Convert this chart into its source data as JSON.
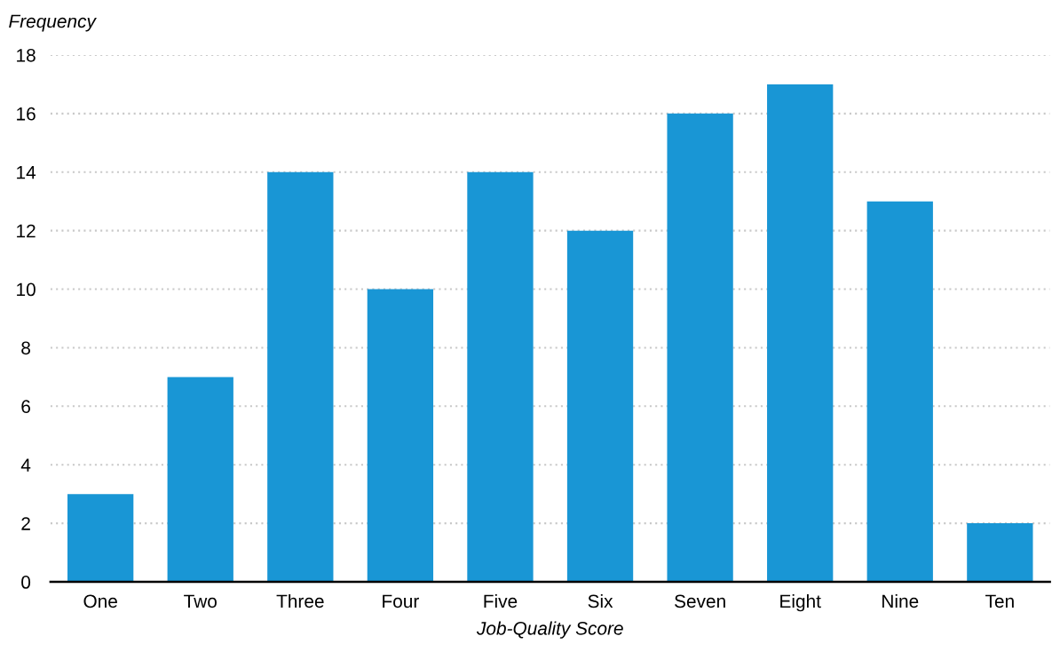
{
  "chart_data": {
    "type": "bar",
    "xlabel": "Job-Quality Score",
    "ylabel": "Frequency",
    "categories": [
      "One",
      "Two",
      "Three",
      "Four",
      "Five",
      "Six",
      "Seven",
      "Eight",
      "Nine",
      "Ten"
    ],
    "values": [
      3,
      7,
      14,
      10,
      14,
      12,
      16,
      17,
      13,
      2
    ],
    "color": "#1996d5",
    "ylim": [
      0,
      18
    ],
    "yticks": [
      0,
      2,
      4,
      6,
      8,
      10,
      12,
      14,
      16,
      18
    ],
    "grid": "y",
    "legend": false
  }
}
